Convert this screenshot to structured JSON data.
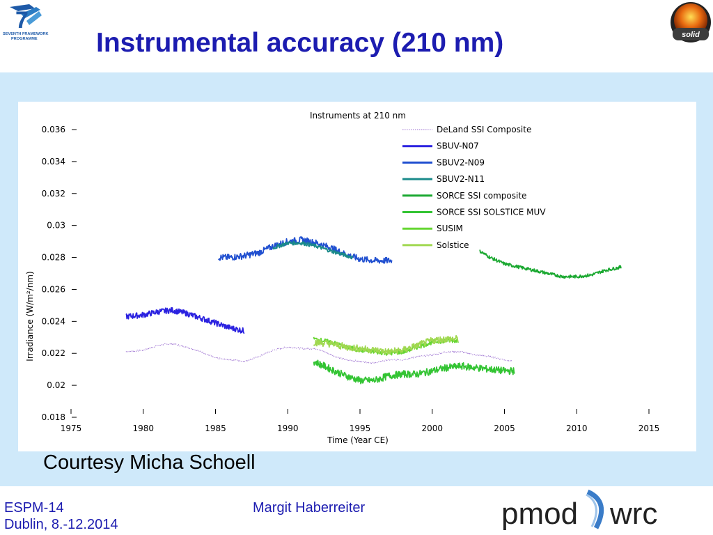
{
  "slide": {
    "title": "Instrumental accuracy (210 nm)",
    "courtesy": "Courtesy Micha Schoell",
    "footer": {
      "conference": "ESPM-14",
      "location": "Dublin, 8.-12.2014",
      "author": "Margit Haberreiter"
    },
    "logos": {
      "fp7_text_1": "SEVENTH FRAMEWORK",
      "fp7_text_2": "PROGRAMME",
      "fp7_number": "7",
      "solid_text": "solid",
      "pmod_text": "pmod",
      "wrc_text": "wrc"
    },
    "colors": {
      "title": "#1c1cb0",
      "panel_background": "#cfe9fa",
      "footer_text": "#1c1cb0"
    }
  },
  "chart_data": {
    "type": "line",
    "title": "Instruments at 210 nm",
    "xlabel": "Time (Year CE)",
    "ylabel": "Irradiance (W/m²/nm)",
    "xlim": [
      1975,
      2015
    ],
    "ylim": [
      0.018,
      0.036
    ],
    "xticks": [
      "1975",
      "1980",
      "1985",
      "1990",
      "1995",
      "2000",
      "2005",
      "2010",
      "2015"
    ],
    "yticks": [
      "0.018",
      "0.02",
      "0.022",
      "0.024",
      "0.026",
      "0.028",
      "0.03",
      "0.032",
      "0.034",
      "0.036"
    ],
    "legend_position": "top-right",
    "series": [
      {
        "name": "DeLand SSI Composite",
        "color": "#9b6fd0",
        "style": "dotted",
        "x": [
          1978.8,
          1980,
          1981,
          1982,
          1983,
          1984,
          1985,
          1986,
          1987,
          1988,
          1989,
          1990,
          1991,
          1992,
          1993,
          1994,
          1995,
          1996,
          1997,
          1998,
          1999,
          2000,
          2001,
          2002,
          2003,
          2004,
          2005,
          2005.5
        ],
        "y": [
          0.0221,
          0.0222,
          0.0225,
          0.0226,
          0.0224,
          0.0221,
          0.0217,
          0.0216,
          0.0215,
          0.0218,
          0.0222,
          0.0224,
          0.0223,
          0.0223,
          0.0219,
          0.0216,
          0.0215,
          0.0214,
          0.0216,
          0.0216,
          0.0218,
          0.0219,
          0.0221,
          0.0221,
          0.0219,
          0.0218,
          0.0216,
          0.0215
        ]
      },
      {
        "name": "SBUV-N07",
        "color": "#2b22e0",
        "style": "solid",
        "x": [
          1978.8,
          1980,
          1981,
          1982,
          1983,
          1984,
          1985,
          1986,
          1987
        ],
        "y": [
          0.0243,
          0.0244,
          0.0246,
          0.0247,
          0.0245,
          0.0242,
          0.0239,
          0.0236,
          0.0234
        ]
      },
      {
        "name": "SBUV2-N09",
        "color": "#2150d0",
        "style": "solid",
        "x": [
          1985.2,
          1986,
          1987,
          1988,
          1989,
          1990,
          1991,
          1992,
          1993,
          1994,
          1995,
          1996,
          1997.2
        ],
        "y": [
          0.028,
          0.028,
          0.0281,
          0.0283,
          0.0287,
          0.029,
          0.0291,
          0.0289,
          0.0286,
          0.0282,
          0.0279,
          0.0278,
          0.0278
        ]
      },
      {
        "name": "SBUV2-N11",
        "color": "#1a8a8a",
        "style": "solid",
        "x": [
          1989,
          1990,
          1991,
          1992,
          1993,
          1994.5
        ],
        "y": [
          0.0286,
          0.0289,
          0.0289,
          0.0287,
          0.0284,
          0.028
        ]
      },
      {
        "name": "SORCE SSI composite",
        "color": "#1aa830",
        "style": "solid",
        "x": [
          2003.3,
          2004,
          2005,
          2006,
          2007,
          2008,
          2009,
          2010,
          2011,
          2012,
          2013.1
        ],
        "y": [
          0.0284,
          0.028,
          0.0276,
          0.0274,
          0.0272,
          0.027,
          0.0268,
          0.0268,
          0.0269,
          0.0272,
          0.0274
        ]
      },
      {
        "name": "SORCE SSI SOLSTICE MUV",
        "color": "#33c433",
        "style": "solid",
        "x": [
          1991.8,
          1993,
          1994,
          1995,
          1996,
          1997,
          1998,
          1999,
          2000,
          2001,
          2002,
          2003,
          2004,
          2005,
          2005.7
        ],
        "y": [
          0.0215,
          0.021,
          0.0206,
          0.0203,
          0.0203,
          0.0206,
          0.0207,
          0.0207,
          0.0209,
          0.0211,
          0.0212,
          0.0211,
          0.021,
          0.0209,
          0.0209
        ]
      },
      {
        "name": "SUSIM",
        "color": "#66d633",
        "style": "solid",
        "x": [
          1991.8,
          1993,
          1994,
          1995,
          1996,
          1997,
          1998,
          1999,
          2000,
          2001,
          2001.8
        ],
        "y": [
          0.0229,
          0.0227,
          0.0224,
          0.0222,
          0.0221,
          0.022,
          0.0221,
          0.0224,
          0.0227,
          0.0228,
          0.0228
        ]
      },
      {
        "name": "Solstice",
        "color": "#a0d850",
        "style": "solid",
        "x": [
          1991.8,
          1993,
          1994,
          1995,
          1996,
          1997,
          1998,
          1999,
          2000,
          2001,
          2001.8
        ],
        "y": [
          0.0227,
          0.0226,
          0.0224,
          0.0223,
          0.0222,
          0.0221,
          0.0222,
          0.0225,
          0.0228,
          0.0229,
          0.0229
        ]
      }
    ]
  }
}
